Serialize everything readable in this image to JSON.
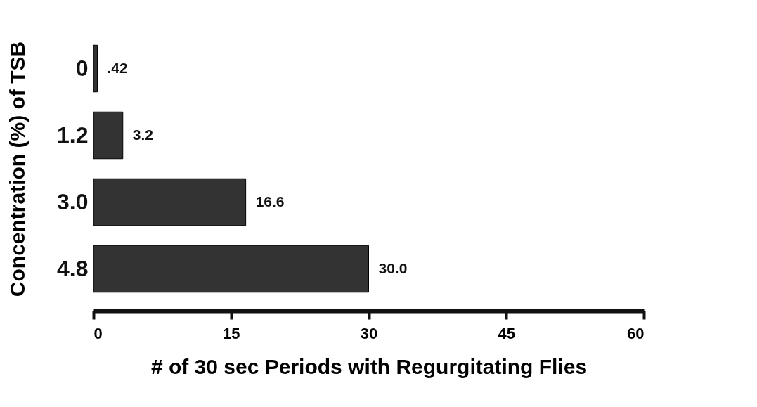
{
  "chart_data": {
    "type": "bar",
    "orientation": "horizontal",
    "xlabel": "# of 30 sec Periods with Regurgitating Flies",
    "ylabel": "Concentration (%) of TSB",
    "categories": [
      "0",
      "1.2",
      "3.0",
      "4.8"
    ],
    "values": [
      0.42,
      3.2,
      16.6,
      30.0
    ],
    "value_labels": [
      ".42",
      "3.2",
      "16.6",
      "30.0"
    ],
    "color": "#333333",
    "xlim": [
      0,
      60
    ],
    "xticks": [
      0,
      15,
      30,
      45,
      60
    ]
  }
}
